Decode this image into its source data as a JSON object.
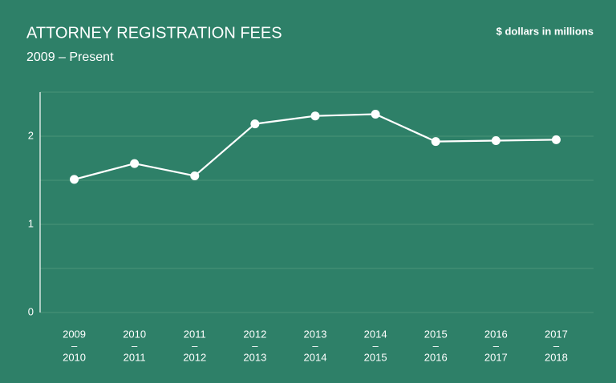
{
  "chart_data": {
    "type": "line",
    "title": "ATTORNEY REGISTRATION FEES",
    "subtitle": "2009 – Present",
    "unit_note": "$ dollars in millions",
    "categories": [
      [
        "2009",
        "–",
        "2010"
      ],
      [
        "2010",
        "–",
        "2011"
      ],
      [
        "2011",
        "–",
        "2012"
      ],
      [
        "2012",
        "–",
        "2013"
      ],
      [
        "2013",
        "–",
        "2014"
      ],
      [
        "2014",
        "–",
        "2015"
      ],
      [
        "2015",
        "–",
        "2016"
      ],
      [
        "2016",
        "–",
        "2017"
      ],
      [
        "2017",
        "–",
        "2018"
      ]
    ],
    "values": [
      1.51,
      1.69,
      1.55,
      2.14,
      2.23,
      2.25,
      1.94,
      1.95,
      1.96
    ],
    "color": "#ffffff",
    "ylim": [
      0,
      2.5
    ],
    "yticks": [
      0,
      1,
      2
    ],
    "minor_yticks": [
      0.5,
      1.5,
      2.5
    ],
    "grid": true
  }
}
